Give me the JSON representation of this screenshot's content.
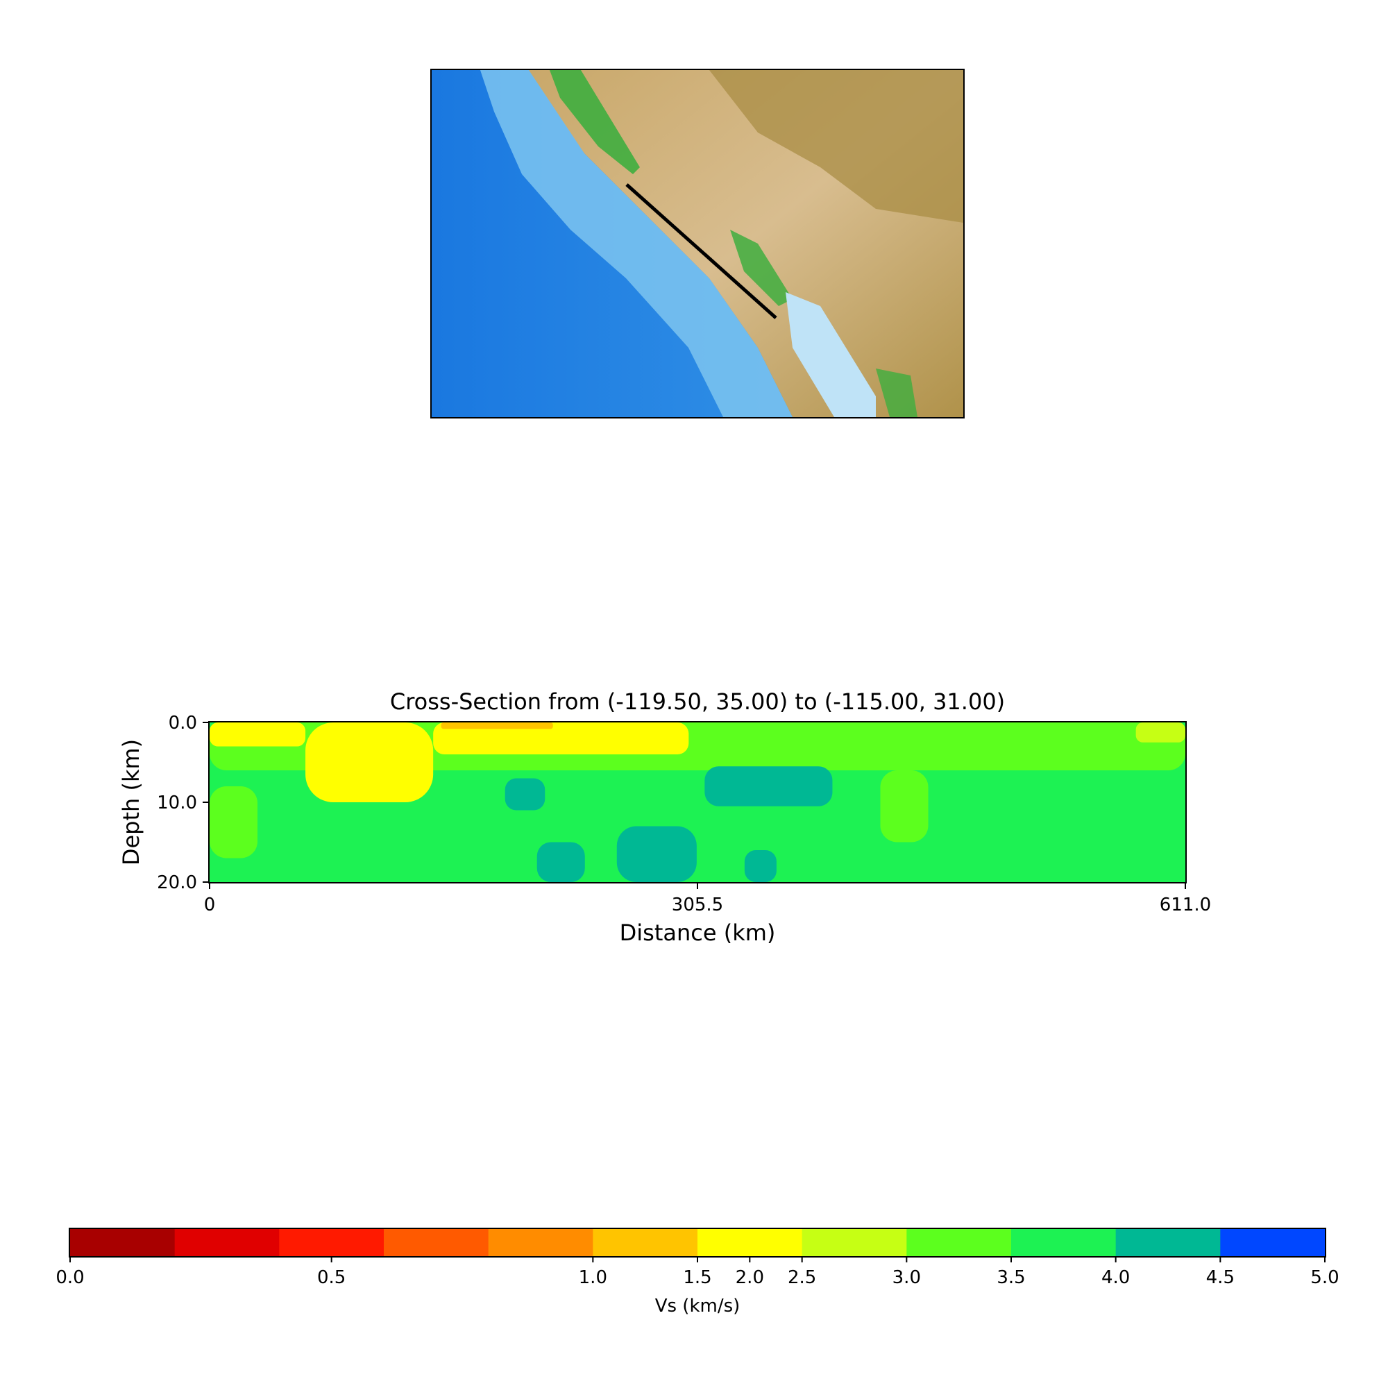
{
  "map": {
    "colors": {
      "deep_ocean": "#1b7fe6",
      "shelf": "#7cc4f0",
      "land_low": "#d9b98a",
      "land_high": "#a8893f",
      "valley_green": "#3fae3f",
      "gulf": "#bfe3f7"
    },
    "profile_line": {
      "start": [
        -119.5,
        35.0
      ],
      "end": [
        -115.0,
        31.0
      ],
      "color": "#000000"
    }
  },
  "chart_data": [
    {
      "type": "heatmap",
      "title": "Cross-Section from (-119.50, 35.00) to (-115.00, 31.00)",
      "xlabel": "Distance (km)",
      "ylabel": "Depth (km)",
      "xlim": [
        0,
        611.0
      ],
      "ylim": [
        20.0,
        0.0
      ],
      "x_ticks": [
        "0",
        "305.5",
        "611.0"
      ],
      "y_ticks": [
        "0.0",
        "10.0",
        "20.0"
      ],
      "x_tick_values": [
        0,
        305.5,
        611.0
      ],
      "y_tick_values": [
        0.0,
        10.0,
        20.0
      ],
      "background_value": 3.75,
      "regions": [
        {
          "name": "shallow-seam",
          "x": [
            0,
            611
          ],
          "y": [
            0,
            6
          ],
          "value": 3.25
        },
        {
          "name": "near-surface-west",
          "x": [
            0,
            60
          ],
          "y": [
            0,
            3
          ],
          "value": 2.0
        },
        {
          "name": "near-surface-basin",
          "x": [
            60,
            140
          ],
          "y": [
            0,
            10
          ],
          "value": 2.0
        },
        {
          "name": "basin-top",
          "x": [
            140,
            300
          ],
          "y": [
            0,
            4
          ],
          "value": 2.0
        },
        {
          "name": "basin-slow-core",
          "x": [
            145,
            215
          ],
          "y": [
            0,
            0.8
          ],
          "value": 1.25
        },
        {
          "name": "east-cap",
          "x": [
            580,
            611
          ],
          "y": [
            0,
            2.5
          ],
          "value": 2.75
        },
        {
          "name": "fast-body-1",
          "x": [
            185,
            210
          ],
          "y": [
            7,
            11
          ],
          "value": 4.25
        },
        {
          "name": "fast-body-2",
          "x": [
            310,
            390
          ],
          "y": [
            5.5,
            10.5
          ],
          "value": 4.25
        },
        {
          "name": "fast-body-3",
          "x": [
            205,
            235
          ],
          "y": [
            15,
            20
          ],
          "value": 4.25
        },
        {
          "name": "fast-body-4",
          "x": [
            255,
            305
          ],
          "y": [
            13,
            20
          ],
          "value": 4.25
        },
        {
          "name": "fast-body-5",
          "x": [
            335,
            355
          ],
          "y": [
            16,
            20
          ],
          "value": 4.25
        },
        {
          "name": "west-lens",
          "x": [
            0,
            30
          ],
          "y": [
            8,
            17
          ],
          "value": 3.25
        },
        {
          "name": "mid-lens",
          "x": [
            420,
            450
          ],
          "y": [
            6,
            15
          ],
          "value": 3.25
        }
      ]
    },
    {
      "type": "colorbar",
      "label": "Vs (km/s)",
      "boundaries": [
        0.0,
        0.2,
        0.4,
        0.6,
        0.8,
        1.0,
        1.5,
        2.5,
        3.0,
        3.5,
        4.0,
        4.5,
        5.0
      ],
      "colors": [
        "#a80000",
        "#e00000",
        "#ff1a00",
        "#ff5a00",
        "#ff8c00",
        "#ffc400",
        "#ffff00",
        "#c6ff14",
        "#5cff1e",
        "#1df253",
        "#00b894",
        "#0047ff"
      ],
      "tick_labels": [
        "0.0",
        "0.5",
        "1.0",
        "1.5",
        "2.0",
        "2.5",
        "3.0",
        "3.5",
        "4.0",
        "4.5",
        "5.0"
      ],
      "tick_positions": [
        0.0,
        0.5,
        1.0,
        1.5,
        2.0,
        2.5,
        3.0,
        3.5,
        4.0,
        4.5,
        5.0
      ]
    }
  ]
}
